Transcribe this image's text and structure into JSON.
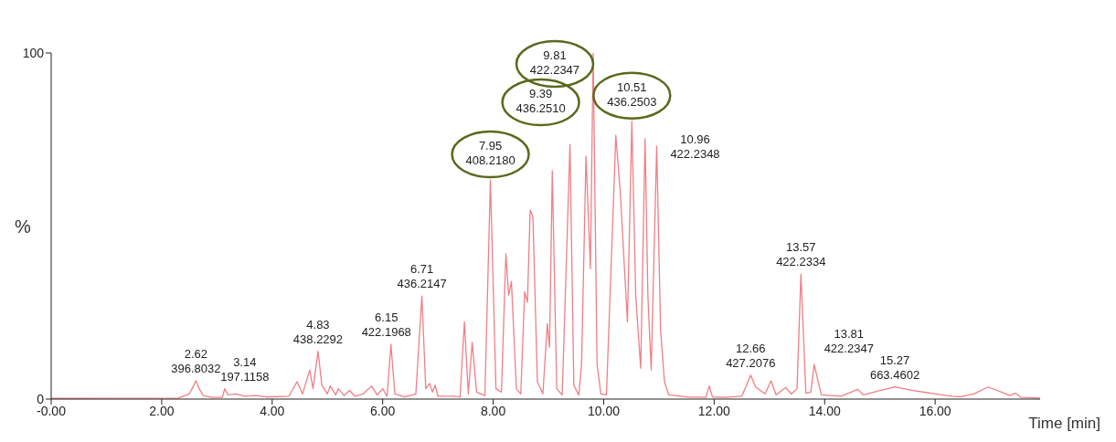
{
  "chart_data": {
    "type": "line",
    "xlabel": "Time [min]",
    "ylabel": "%",
    "xlim": [
      0,
      17.9
    ],
    "ylim": [
      0,
      100
    ],
    "xticks": [
      {
        "value": 0,
        "label": "-0.00"
      },
      {
        "value": 2,
        "label": "2.00"
      },
      {
        "value": 4,
        "label": "4.00"
      },
      {
        "value": 6,
        "label": "6.00"
      },
      {
        "value": 8,
        "label": "8.00"
      },
      {
        "value": 10,
        "label": "10.00"
      },
      {
        "value": 12,
        "label": "12.00"
      },
      {
        "value": 14,
        "label": "14.00"
      },
      {
        "value": 16,
        "label": "16.00"
      }
    ],
    "yticks": [
      0,
      100
    ],
    "grid": false,
    "legend": false,
    "marker": "none",
    "line_style": "solid",
    "x": [
      0,
      2.3,
      2.5,
      2.55,
      2.62,
      2.68,
      2.75,
      2.9,
      3.1,
      3.14,
      3.2,
      3.35,
      3.5,
      3.7,
      3.9,
      4.3,
      4.45,
      4.55,
      4.68,
      4.74,
      4.83,
      4.9,
      5.0,
      5.05,
      5.15,
      5.2,
      5.3,
      5.4,
      5.5,
      5.65,
      5.8,
      5.9,
      6.0,
      6.08,
      6.15,
      6.22,
      6.4,
      6.6,
      6.71,
      6.78,
      6.85,
      6.9,
      6.95,
      7.0,
      7.3,
      7.4,
      7.48,
      7.55,
      7.62,
      7.7,
      7.85,
      7.95,
      8.05,
      8.15,
      8.23,
      8.28,
      8.33,
      8.42,
      8.5,
      8.57,
      8.62,
      8.67,
      8.72,
      8.8,
      8.9,
      8.98,
      9.02,
      9.07,
      9.15,
      9.25,
      9.39,
      9.46,
      9.55,
      9.6,
      9.68,
      9.76,
      9.81,
      9.88,
      9.95,
      10.05,
      10.15,
      10.22,
      10.3,
      10.43,
      10.51,
      10.58,
      10.67,
      10.75,
      10.8,
      10.86,
      10.96,
      11.03,
      11.1,
      11.18,
      11.5,
      11.85,
      11.91,
      11.97,
      12.2,
      12.5,
      12.66,
      12.75,
      12.92,
      13.03,
      13.12,
      13.29,
      13.4,
      13.5,
      13.57,
      13.66,
      13.75,
      13.81,
      13.94,
      14.3,
      14.6,
      14.7,
      15.0,
      15.27,
      15.6,
      16.0,
      16.3,
      16.46,
      16.7,
      16.96,
      17.2,
      17.35,
      17.45,
      17.55,
      17.9
    ],
    "series": [
      {
        "color": "#f07f86",
        "values": [
          0.2,
          0.3,
          1.5,
          3,
          5.3,
          3,
          1,
          0.5,
          0.5,
          3,
          1.2,
          1.5,
          0.8,
          1,
          0.6,
          0.8,
          5,
          1.5,
          8.4,
          3,
          13.8,
          4,
          1.5,
          3.8,
          1.2,
          3,
          1,
          2.5,
          0.8,
          1.5,
          3.8,
          1.2,
          3,
          0.8,
          15.8,
          1.5,
          0.6,
          1.5,
          29.8,
          3,
          4.5,
          2,
          4,
          0.8,
          0.8,
          0.6,
          22.3,
          1.5,
          16.4,
          2,
          1,
          63.3,
          3,
          2,
          42,
          30,
          34,
          3,
          1.5,
          31,
          28,
          54.6,
          52.6,
          5,
          1.5,
          21.8,
          15,
          65.9,
          3,
          1.2,
          73.6,
          4,
          1.2,
          10,
          70.2,
          37.7,
          100,
          10,
          1.5,
          1.2,
          45,
          76.2,
          60,
          22.3,
          80.3,
          30,
          8.9,
          75.2,
          30,
          8.4,
          73.1,
          20,
          5,
          1.2,
          0.6,
          0.5,
          3.8,
          0.6,
          0.5,
          0.8,
          6.9,
          3.5,
          1.5,
          5.3,
          1.2,
          3.3,
          1.5,
          3,
          36.1,
          1.7,
          2,
          10,
          1.2,
          0.8,
          2.8,
          1.2,
          2.5,
          3.5,
          2.5,
          1.5,
          0.8,
          0.7,
          1.5,
          3.5,
          2,
          1,
          1.7,
          0.5,
          0.3
        ]
      }
    ],
    "annotations": [
      {
        "text": "2.62\n396.8032",
        "x": 2.62,
        "y": 5.3
      },
      {
        "text": "3.14\n197.1158",
        "x": 3.14,
        "y": 3
      },
      {
        "text": "4.83\n438.2292",
        "x": 4.83,
        "y": 13.8
      },
      {
        "text": "6.15\n422.1968",
        "x": 6.15,
        "y": 15.8
      },
      {
        "text": "6.71\n436.2147",
        "x": 6.71,
        "y": 29.8
      },
      {
        "text": "7.95\n408.2180",
        "x": 7.95,
        "y": 63.3
      },
      {
        "text": "9.39\n436.2510",
        "x": 9.39,
        "y": 73.6
      },
      {
        "text": "9.81\n422.2347",
        "x": 9.81,
        "y": 100
      },
      {
        "text": "10.51\n436.2503",
        "x": 10.51,
        "y": 80.3
      },
      {
        "text": "10.96\n422.2348",
        "x": 10.96,
        "y": 73.1
      },
      {
        "text": "12.66\n427.2076",
        "x": 12.66,
        "y": 6.9
      },
      {
        "text": "13.57\n422.2334",
        "x": 13.57,
        "y": 36.1
      },
      {
        "text": "13.81\n422.2347",
        "x": 13.81,
        "y": 10
      },
      {
        "text": "15.27\n663.4602",
        "x": 15.27,
        "y": 3.5
      }
    ]
  }
}
